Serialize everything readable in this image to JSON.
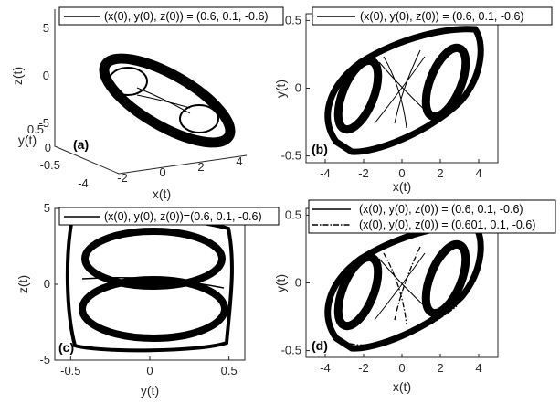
{
  "chart_data": [
    {
      "type": "line",
      "panel_label": "(a)",
      "view": "3d",
      "xlabel": "x(t)",
      "ylabel": "y(t)",
      "zlabel": "z(t)",
      "xlim": [
        -5,
        5
      ],
      "ylim": [
        -0.5,
        0.5
      ],
      "zlim": [
        -5,
        5
      ],
      "xticks": [
        "-4",
        "-2",
        "0",
        "2",
        "4"
      ],
      "yticks": [
        "-0.5",
        "0",
        "0.5"
      ],
      "zticks": [
        "-5",
        "0",
        "5"
      ],
      "series": [
        {
          "name": "(x(0), y(0), z(0)) = (0.6, 0.1, -0.6)",
          "style": "solid"
        }
      ],
      "legend_position": "top"
    },
    {
      "type": "line",
      "panel_label": "(b)",
      "xlabel": "x(t)",
      "ylabel": "y(t)",
      "xlim": [
        -5,
        5
      ],
      "ylim": [
        -0.55,
        0.55
      ],
      "xticks": [
        -4,
        -2,
        0,
        2,
        4
      ],
      "yticks": [
        -0.5,
        0,
        0.5
      ],
      "xtick_labels": [
        "-4",
        "-2",
        "0",
        "2",
        "4"
      ],
      "ytick_labels": [
        "-0.5",
        "0",
        "0.5"
      ],
      "series": [
        {
          "name": "(x(0), y(0), z(0)) = (0.6, 0.1, -0.6)",
          "style": "solid"
        }
      ],
      "legend_position": "top"
    },
    {
      "type": "line",
      "panel_label": "(c)",
      "xlabel": "y(t)",
      "ylabel": "z(t)",
      "xlim": [
        -0.6,
        0.6
      ],
      "ylim": [
        -5,
        5
      ],
      "xticks": [
        -0.5,
        0,
        0.5
      ],
      "yticks": [
        -5,
        0,
        5
      ],
      "xtick_labels": [
        "-0.5",
        "0",
        "0.5"
      ],
      "ytick_labels": [
        "-5",
        "0",
        "5"
      ],
      "series": [
        {
          "name": "(x(0), y(0), z(0))=(0.6, 0.1, -0.6)",
          "style": "solid"
        }
      ],
      "legend_position": "top"
    },
    {
      "type": "line",
      "panel_label": "(d)",
      "xlabel": "x(t)",
      "ylabel": "y(t)",
      "xlim": [
        -5,
        5
      ],
      "ylim": [
        -0.55,
        0.55
      ],
      "xticks": [
        -4,
        -2,
        0,
        2,
        4
      ],
      "yticks": [
        -0.5,
        0,
        0.5
      ],
      "xtick_labels": [
        "-4",
        "-2",
        "0",
        "2",
        "4"
      ],
      "ytick_labels": [
        "-0.5",
        "0",
        "0.5"
      ],
      "series": [
        {
          "name": "(x(0), y(0), z(0)) = (0.6, 0.1, -0.6)",
          "style": "solid"
        },
        {
          "name": "(x(0), y(0), z(0)) = (0.601, 0.1, -0.6)",
          "style": "dashdot"
        }
      ],
      "legend_position": "top"
    }
  ]
}
